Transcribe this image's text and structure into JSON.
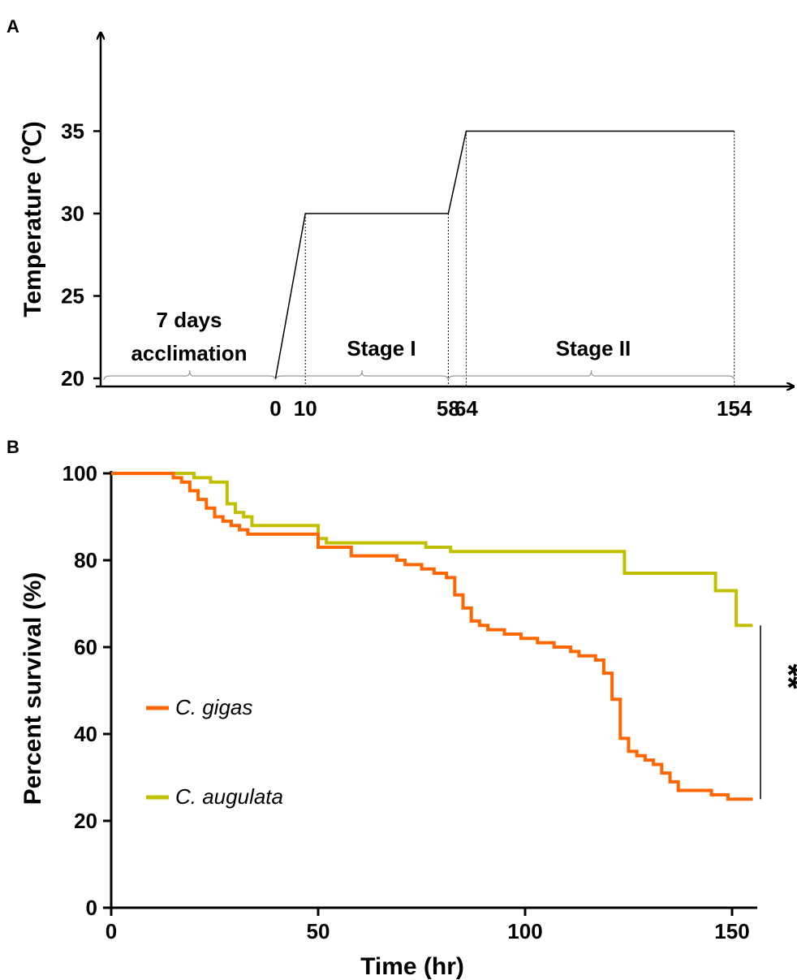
{
  "panels": {
    "a": {
      "label": "A"
    },
    "b": {
      "label": "B"
    }
  },
  "chart_data": [
    {
      "type": "line",
      "panel": "A",
      "ylabel": "Temperature (℃)",
      "xlabel": "",
      "ylim": [
        20,
        40
      ],
      "yticks": [
        "20",
        "25",
        "30",
        "35"
      ],
      "xticks": [
        "0",
        "10",
        "58",
        "64",
        "154"
      ],
      "x_tick_values": [
        0,
        10,
        58,
        64,
        154
      ],
      "series": [
        {
          "x": [
            0,
            10,
            58,
            64,
            154
          ],
          "values": [
            20,
            30,
            30,
            35,
            35
          ]
        }
      ],
      "annotations": [
        {
          "text": "7 days",
          "text2": "acclimation",
          "from": -70,
          "to": 0
        },
        {
          "text": "Stage I",
          "from": 0,
          "to": 58
        },
        {
          "text": "Stage II",
          "from": 58,
          "to": 154
        }
      ],
      "color": "#000000"
    },
    {
      "type": "line",
      "panel": "B",
      "xlabel": "Time (hr)",
      "ylabel": "Percent survival (%)",
      "xlim": [
        0,
        155
      ],
      "ylim": [
        0,
        100
      ],
      "xticks": [
        "0",
        "50",
        "100",
        "150"
      ],
      "yticks": [
        "0",
        "20",
        "40",
        "60",
        "80",
        "100"
      ],
      "step": true,
      "series": [
        {
          "name": "C. gigas",
          "color": "#ff6600",
          "x": [
            0,
            13,
            15,
            17,
            19,
            21,
            23,
            25,
            27,
            29,
            31,
            33,
            35,
            50,
            58,
            66,
            69,
            71,
            75,
            78,
            81,
            83,
            85,
            87,
            89,
            91,
            93,
            95,
            97,
            99,
            101,
            103,
            107,
            111,
            113,
            117,
            119,
            121,
            123,
            125,
            127,
            129,
            131,
            133,
            135,
            137,
            139,
            145,
            149,
            155
          ],
          "values": [
            100,
            100,
            99,
            98,
            96,
            94,
            92,
            90,
            89,
            88,
            87,
            86,
            86,
            83,
            81,
            81,
            80,
            79,
            78,
            77,
            76,
            72,
            69,
            66,
            65,
            64,
            64,
            63,
            63,
            62,
            62,
            61,
            60,
            59,
            58,
            57,
            54,
            48,
            39,
            36,
            35,
            34,
            33,
            31,
            29,
            27,
            27,
            26,
            25,
            25
          ]
        },
        {
          "name": "C. augulata",
          "color": "#c0c000",
          "x": [
            0,
            18,
            20,
            24,
            28,
            30,
            32,
            34,
            50,
            52,
            76,
            82,
            124,
            146,
            151,
            155
          ],
          "values": [
            100,
            100,
            99,
            98,
            93,
            91,
            90,
            88,
            85,
            84,
            83,
            82,
            77,
            73,
            65,
            65
          ]
        }
      ],
      "significance": {
        "text": "**",
        "between_values": [
          65,
          25
        ]
      },
      "legend": {
        "placement": "center-left"
      }
    }
  ]
}
